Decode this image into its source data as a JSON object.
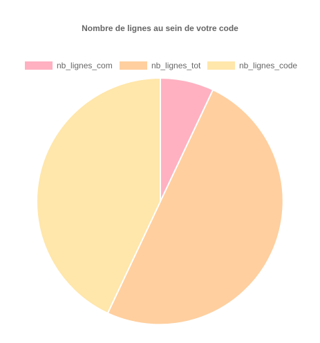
{
  "chart_data": {
    "type": "pie",
    "title": "Nombre de lignes au sein de votre code",
    "legend_position": "top",
    "categories": [
      "nb_lignes_com",
      "nb_lignes_tot",
      "nb_lignes_code"
    ],
    "values": [
      7,
      50,
      43
    ],
    "colors": [
      "#FFB1C1",
      "#FFCF9F",
      "#FFE6AA"
    ],
    "border_color": "#ffffff"
  }
}
